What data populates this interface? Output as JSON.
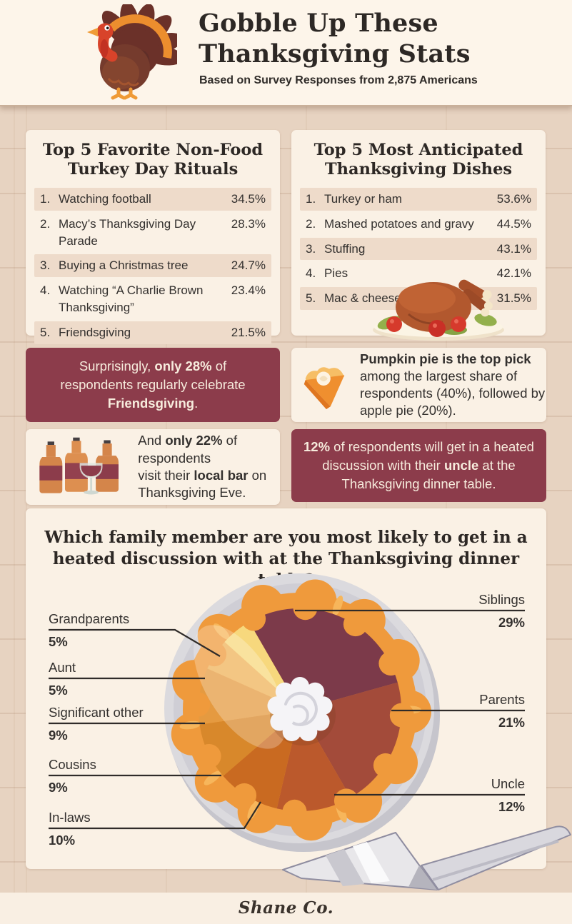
{
  "header": {
    "title_line1": "Gobble Up These",
    "title_line2": "Thanksgiving Stats",
    "subtitle": "Based on Survey Responses from 2,875 Americans"
  },
  "palette": {
    "maroon": "#8c3c4b",
    "card_cream": "#faf1e5",
    "header_cream": "#fdf5ea",
    "background_tan": "#e7d3c1",
    "row_shade": "#eedbca",
    "text_dark": "#33302e",
    "crust_orange": "#ef9a3c",
    "plate_gray": "#d7d6db"
  },
  "lists": [
    {
      "title_line1": "Top 5 Favorite Non-Food",
      "title_line2": "Turkey Day Rituals",
      "items": [
        {
          "rank": "1.",
          "label": "Watching football",
          "value": "34.5%"
        },
        {
          "rank": "2.",
          "label": "Macy’s Thanksgiving Day Parade",
          "value": "28.3%"
        },
        {
          "rank": "3.",
          "label": "Buying a Christmas tree",
          "value": "24.7%"
        },
        {
          "rank": "4.",
          "label": "Watching “A Charlie Brown Thanksgiving”",
          "value": "23.4%"
        },
        {
          "rank": "5.",
          "label": "Friendsgiving",
          "value": "21.5%"
        }
      ]
    },
    {
      "title_line1": "Top 5 Most Anticipated",
      "title_line2": "Thanksgiving Dishes",
      "items": [
        {
          "rank": "1.",
          "label": "Turkey or ham",
          "value": "53.6%"
        },
        {
          "rank": "2.",
          "label": "Mashed potatoes and gravy",
          "value": "44.5%"
        },
        {
          "rank": "3.",
          "label": "Stuffing",
          "value": "43.1%"
        },
        {
          "rank": "4.",
          "label": "Pies",
          "value": "42.1%"
        },
        {
          "rank": "5.",
          "label": "Mac & cheese",
          "value": "31.5%"
        }
      ]
    }
  ],
  "callouts": [
    {
      "variant": "maroon",
      "segments": [
        {
          "t": "Surprisingly, "
        },
        {
          "t": "only 28%",
          "b": true
        },
        {
          "t": " of respondents regularly celebrate "
        },
        {
          "t": "Friendsgiving",
          "b": true
        },
        {
          "t": "."
        }
      ]
    },
    {
      "variant": "light",
      "icon": "pumpkin-pie-slice-icon",
      "segments": [
        {
          "t": "Pumpkin pie is the top pick",
          "b": true
        },
        {
          "t": " among the largest share of respondents (40%), followed by apple pie (20%)."
        }
      ]
    },
    {
      "variant": "light",
      "icon": "beer-bottles-wine-icon",
      "segments": [
        {
          "t": "And "
        },
        {
          "t": "only 22%",
          "b": true
        },
        {
          "t": " of respondents"
        },
        {
          "br": true
        },
        {
          "t": "visit their "
        },
        {
          "t": "local bar",
          "b": true
        },
        {
          "t": " on Thanksgiving Eve."
        }
      ]
    },
    {
      "variant": "maroon",
      "segments": [
        {
          "t": "12%",
          "b": true
        },
        {
          "t": " of respondents will get in a heated discussion with their "
        },
        {
          "t": "uncle",
          "b": true
        },
        {
          "t": " at the Thanksgiving dinner table."
        }
      ]
    }
  ],
  "chart_data": {
    "type": "pie",
    "title": "Which family member are you most likely to get in a heated discussion with at the Thanksgiving dinner table?",
    "title_line1": "Which family member are you most likely to get in a",
    "title_line2": "heated discussion with at the Thanksgiving dinner table?",
    "start_angle_deg": -30,
    "legend_position": "callout-labels",
    "slices": [
      {
        "label": "Siblings",
        "value": 29,
        "color": "#7c3a4a"
      },
      {
        "label": "Parents",
        "value": 21,
        "color": "#a34b3a"
      },
      {
        "label": "Uncle",
        "value": 12,
        "color": "#bb592c"
      },
      {
        "label": "In-laws",
        "value": 10,
        "color": "#c96a21"
      },
      {
        "label": "Cousins",
        "value": 9,
        "color": "#d8882b"
      },
      {
        "label": "Significant other",
        "value": 9,
        "color": "#e59a40"
      },
      {
        "label": "Aunt",
        "value": 5,
        "color": "#efb258"
      },
      {
        "label": "Grandparents",
        "value": 5,
        "color": "#f7d87d"
      }
    ]
  },
  "footer": {
    "logo": "Shane Co."
  }
}
